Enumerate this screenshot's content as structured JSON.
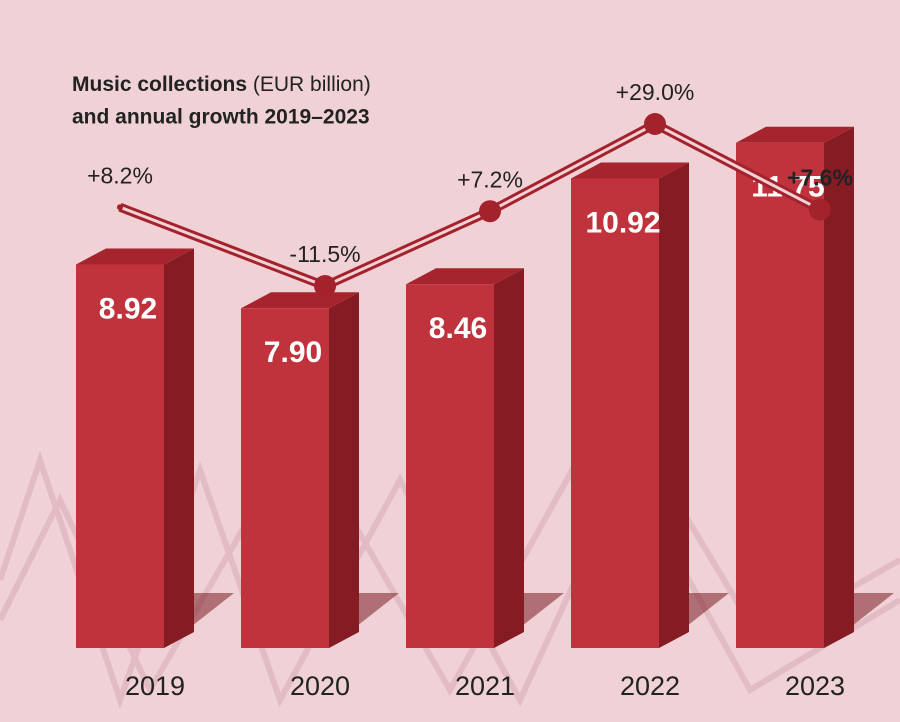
{
  "chart_data": {
    "type": "bar",
    "title": "Music collections",
    "unit": "(EUR billion)",
    "title_line2": "and annual growth 2019–2023",
    "categories": [
      "2019",
      "2020",
      "2021",
      "2022",
      "2023"
    ],
    "values": [
      8.92,
      7.9,
      8.46,
      10.92,
      11.75
    ],
    "value_labels": [
      "8.92",
      "7.90",
      "8.46",
      "10.92",
      "11.75"
    ],
    "color": "#c0323c",
    "growth": {
      "type": "line",
      "values": [
        8.2,
        -11.5,
        7.2,
        29.0,
        7.6
      ],
      "value_labels": [
        "+8.2%",
        "-11.5%",
        "+7.2%",
        "+29.0%",
        "+7.6%"
      ],
      "color": "#a3222c"
    }
  }
}
